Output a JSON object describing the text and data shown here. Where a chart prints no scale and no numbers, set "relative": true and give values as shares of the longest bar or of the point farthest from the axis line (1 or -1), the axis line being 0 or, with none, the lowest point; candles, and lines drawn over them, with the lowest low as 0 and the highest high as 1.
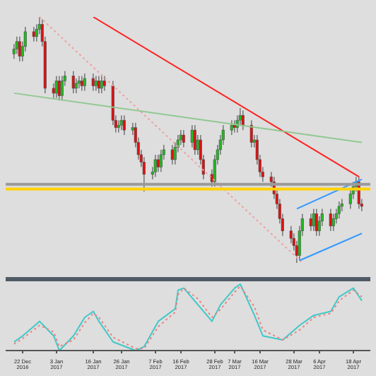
{
  "chart_data": [
    {
      "type": "candlestick",
      "relative": true,
      "tick_labels": false,
      "grid": false,
      "legend": false,
      "xlim": [
        "2016-12-16",
        "2017-04-24"
      ],
      "x": [
        "2016-12-19",
        "2016-12-20",
        "2016-12-21",
        "2016-12-22",
        "2016-12-23",
        "2016-12-26",
        "2016-12-27",
        "2016-12-28",
        "2016-12-29",
        "2016-12-30",
        "2017-01-02",
        "2017-01-03",
        "2017-01-04",
        "2017-01-05",
        "2017-01-06",
        "2017-01-09",
        "2017-01-10",
        "2017-01-11",
        "2017-01-12",
        "2017-01-13",
        "2017-01-16",
        "2017-01-17",
        "2017-01-18",
        "2017-01-19",
        "2017-01-20",
        "2017-01-23",
        "2017-01-24",
        "2017-01-25",
        "2017-01-26",
        "2017-01-27",
        "2017-01-30",
        "2017-01-31",
        "2017-02-01",
        "2017-02-02",
        "2017-02-03",
        "2017-02-06",
        "2017-02-07",
        "2017-02-08",
        "2017-02-09",
        "2017-02-10",
        "2017-02-13",
        "2017-02-14",
        "2017-02-15",
        "2017-02-16",
        "2017-02-17",
        "2017-02-20",
        "2017-02-21",
        "2017-02-22",
        "2017-02-23",
        "2017-02-24",
        "2017-02-27",
        "2017-02-28",
        "2017-03-01",
        "2017-03-02",
        "2017-03-03",
        "2017-03-06",
        "2017-03-07",
        "2017-03-08",
        "2017-03-09",
        "2017-03-10",
        "2017-03-13",
        "2017-03-14",
        "2017-03-15",
        "2017-03-16",
        "2017-03-17",
        "2017-03-20",
        "2017-03-21",
        "2017-03-22",
        "2017-03-23",
        "2017-03-24",
        "2017-03-27",
        "2017-03-28",
        "2017-03-29",
        "2017-03-30",
        "2017-03-31",
        "2017-04-03",
        "2017-04-04",
        "2017-04-05",
        "2017-04-06",
        "2017-04-07",
        "2017-04-10",
        "2017-04-11",
        "2017-04-12",
        "2017-04-13",
        "2017-04-14",
        "2017-04-17",
        "2017-04-18",
        "2017-04-19",
        "2017-04-20",
        "2017-04-21"
      ],
      "ohlc": [
        [
          0.85,
          0.89,
          0.83,
          0.87
        ],
        [
          0.87,
          0.92,
          0.85,
          0.9
        ],
        [
          0.9,
          0.92,
          0.82,
          0.84
        ],
        [
          0.84,
          0.9,
          0.82,
          0.88
        ],
        [
          0.88,
          0.96,
          0.86,
          0.94
        ],
        [
          0.94,
          0.96,
          0.9,
          0.92
        ],
        [
          0.92,
          0.97,
          0.9,
          0.95
        ],
        [
          0.95,
          1.0,
          0.93,
          0.97
        ],
        [
          0.97,
          0.99,
          0.88,
          0.9
        ],
        [
          0.9,
          0.92,
          0.69,
          0.71
        ],
        [
          0.71,
          0.73,
          0.67,
          0.69
        ],
        [
          0.69,
          0.76,
          0.67,
          0.74
        ],
        [
          0.74,
          0.76,
          0.66,
          0.68
        ],
        [
          0.68,
          0.76,
          0.66,
          0.74
        ],
        [
          0.74,
          0.78,
          0.72,
          0.76
        ],
        [
          0.76,
          0.78,
          0.69,
          0.71
        ],
        [
          0.71,
          0.75,
          0.69,
          0.73
        ],
        [
          0.73,
          0.76,
          0.71,
          0.74
        ],
        [
          0.74,
          0.76,
          0.7,
          0.72
        ],
        [
          0.72,
          0.77,
          0.7,
          0.75
        ],
        [
          0.75,
          0.77,
          0.7,
          0.72
        ],
        [
          0.72,
          0.76,
          0.7,
          0.74
        ],
        [
          0.74,
          0.76,
          0.69,
          0.71
        ],
        [
          0.71,
          0.76,
          0.69,
          0.74
        ],
        [
          0.74,
          0.76,
          0.7,
          0.72
        ],
        [
          0.72,
          0.74,
          0.56,
          0.58
        ],
        [
          0.58,
          0.6,
          0.53,
          0.55
        ],
        [
          0.55,
          0.58,
          0.53,
          0.56
        ],
        [
          0.56,
          0.6,
          0.54,
          0.58
        ],
        [
          0.58,
          0.6,
          0.52,
          0.54
        ],
        [
          0.54,
          0.57,
          0.52,
          0.55
        ],
        [
          0.55,
          0.57,
          0.47,
          0.49
        ],
        [
          0.49,
          0.51,
          0.42,
          0.44
        ],
        [
          0.44,
          0.46,
          0.39,
          0.41
        ],
        [
          0.41,
          0.43,
          0.29,
          0.36
        ],
        [
          0.36,
          0.39,
          0.34,
          0.37
        ],
        [
          0.37,
          0.44,
          0.35,
          0.42
        ],
        [
          0.42,
          0.44,
          0.37,
          0.39
        ],
        [
          0.39,
          0.46,
          0.37,
          0.44
        ],
        [
          0.44,
          0.48,
          0.42,
          0.46
        ],
        [
          0.46,
          0.48,
          0.4,
          0.42
        ],
        [
          0.42,
          0.49,
          0.4,
          0.47
        ],
        [
          0.47,
          0.52,
          0.45,
          0.5
        ],
        [
          0.5,
          0.54,
          0.48,
          0.52
        ],
        [
          0.52,
          0.54,
          0.47,
          0.49
        ],
        [
          0.49,
          0.56,
          0.47,
          0.54
        ],
        [
          0.54,
          0.56,
          0.44,
          0.46
        ],
        [
          0.46,
          0.52,
          0.44,
          0.5
        ],
        [
          0.5,
          0.52,
          0.4,
          0.42
        ],
        [
          0.42,
          0.44,
          0.34,
          0.36
        ],
        [
          0.36,
          0.38,
          0.31,
          0.33
        ],
        [
          0.33,
          0.44,
          0.31,
          0.42
        ],
        [
          0.42,
          0.48,
          0.4,
          0.46
        ],
        [
          0.46,
          0.52,
          0.44,
          0.5
        ],
        [
          0.5,
          0.56,
          0.48,
          0.54
        ],
        [
          0.54,
          0.58,
          0.52,
          0.56
        ],
        [
          0.56,
          0.58,
          0.53,
          0.55
        ],
        [
          0.55,
          0.6,
          0.53,
          0.58
        ],
        [
          0.58,
          0.63,
          0.56,
          0.6
        ],
        [
          0.6,
          0.62,
          0.54,
          0.56
        ],
        [
          0.56,
          0.58,
          0.47,
          0.49
        ],
        [
          0.49,
          0.52,
          0.47,
          0.5
        ],
        [
          0.5,
          0.52,
          0.4,
          0.42
        ],
        [
          0.42,
          0.44,
          0.35,
          0.37
        ],
        [
          0.37,
          0.39,
          0.33,
          0.35
        ],
        [
          0.35,
          0.37,
          0.31,
          0.33
        ],
        [
          0.33,
          0.35,
          0.26,
          0.28
        ],
        [
          0.28,
          0.3,
          0.22,
          0.24
        ],
        [
          0.24,
          0.26,
          0.16,
          0.18
        ],
        [
          0.18,
          0.2,
          0.11,
          0.13
        ],
        [
          0.13,
          0.15,
          0.08,
          0.1
        ],
        [
          0.1,
          0.12,
          0.05,
          0.07
        ],
        [
          0.07,
          0.09,
          0.0,
          0.03
        ],
        [
          0.03,
          0.15,
          0.01,
          0.13
        ],
        [
          0.13,
          0.2,
          0.11,
          0.18
        ],
        [
          0.18,
          0.2,
          0.13,
          0.15
        ],
        [
          0.15,
          0.22,
          0.13,
          0.2
        ],
        [
          0.2,
          0.22,
          0.11,
          0.13
        ],
        [
          0.13,
          0.19,
          0.11,
          0.17
        ],
        [
          0.17,
          0.22,
          0.15,
          0.2
        ],
        [
          0.2,
          0.22,
          0.13,
          0.15
        ],
        [
          0.15,
          0.2,
          0.13,
          0.18
        ],
        [
          0.18,
          0.22,
          0.16,
          0.2
        ],
        [
          0.2,
          0.25,
          0.18,
          0.23
        ],
        [
          0.23,
          0.26,
          0.21,
          0.24
        ],
        [
          0.24,
          0.3,
          0.22,
          0.28
        ],
        [
          0.28,
          0.33,
          0.26,
          0.31
        ],
        [
          0.31,
          0.35,
          0.29,
          0.33
        ],
        [
          0.33,
          0.35,
          0.22,
          0.24
        ],
        [
          0.24,
          0.26,
          0.21,
          0.23
        ]
      ],
      "series": [
        {
          "type": "line",
          "color": "#ff2020",
          "line_style": "solid",
          "x": [
            "2017-01-16",
            "2017-04-20"
          ],
          "values": [
            1.0,
            0.35
          ]
        },
        {
          "type": "line",
          "color": "#f0a0a0",
          "line_style": "dotted",
          "x": [
            "2016-12-28",
            "2017-03-31"
          ],
          "values": [
            1.0,
            0.0
          ]
        },
        {
          "type": "line",
          "color": "#90c890",
          "line_style": "solid",
          "x": [
            "2016-12-19",
            "2017-04-21"
          ],
          "values": [
            0.69,
            0.49
          ]
        },
        {
          "type": "line",
          "color": "#3399ff",
          "line_style": "solid",
          "x": [
            "2017-03-29",
            "2017-04-21"
          ],
          "values": [
            0.22,
            0.34
          ]
        },
        {
          "type": "line",
          "color": "#3399ff",
          "line_style": "solid",
          "x": [
            "2017-03-30",
            "2017-04-21"
          ],
          "values": [
            0.01,
            0.12
          ]
        }
      ],
      "ref_lines": [
        {
          "axis": "y",
          "value": 0.32,
          "color": "#9a9a9a"
        },
        {
          "axis": "y",
          "value": 0.3,
          "color": "#ffd200"
        }
      ]
    },
    {
      "type": "line",
      "relative": true,
      "tick_labels": "x",
      "grid": false,
      "legend": false,
      "marker": "none",
      "xlim": [
        "2016-12-16",
        "2017-04-24"
      ],
      "xticks": [
        {
          "value": "2016-12-22",
          "label": "22 Dec 2016"
        },
        {
          "value": "2017-01-03",
          "label": "3 Jan 2017"
        },
        {
          "value": "2017-01-16",
          "label": "16 Jan 2017"
        },
        {
          "value": "2017-01-26",
          "label": "26 Jan 2017"
        },
        {
          "value": "2017-02-07",
          "label": "7 Feb 2017"
        },
        {
          "value": "2017-02-16",
          "label": "16 Feb 2017"
        },
        {
          "value": "2017-02-28",
          "label": "28 Feb 2017"
        },
        {
          "value": "2017-03-07",
          "label": "7 Mar 2017"
        },
        {
          "value": "2017-03-16",
          "label": "16 Mar 2017"
        },
        {
          "value": "2017-03-28",
          "label": "28 Mar 2017"
        },
        {
          "value": "2017-04-06",
          "label": "6 Apr 2017"
        },
        {
          "value": "2017-04-18",
          "label": "18 Apr 2017"
        }
      ],
      "x": [
        "2016-12-19",
        "2016-12-22",
        "2016-12-28",
        "2017-01-02",
        "2017-01-04",
        "2017-01-09",
        "2017-01-13",
        "2017-01-16",
        "2017-01-18",
        "2017-01-23",
        "2017-01-31",
        "2017-02-03",
        "2017-02-08",
        "2017-02-14",
        "2017-02-15",
        "2017-02-17",
        "2017-02-22",
        "2017-02-27",
        "2017-03-02",
        "2017-03-07",
        "2017-03-09",
        "2017-03-14",
        "2017-03-17",
        "2017-03-24",
        "2017-03-30",
        "2017-04-04",
        "2017-04-10",
        "2017-04-13",
        "2017-04-18",
        "2017-04-21"
      ],
      "series": [
        {
          "color": "#40c8c8",
          "line_style": "solid",
          "values": [
            0.13,
            0.22,
            0.44,
            0.22,
            0,
            0.22,
            0.5,
            0.59,
            0.44,
            0.13,
            0,
            0.06,
            0.44,
            0.63,
            0.91,
            0.94,
            0.69,
            0.44,
            0.69,
            0.94,
            1,
            0.53,
            0.22,
            0.16,
            0.38,
            0.53,
            0.59,
            0.81,
            0.94,
            0.75
          ]
        },
        {
          "color": "#f08080",
          "line_style": "dotted",
          "values": [
            0.1,
            0.18,
            0.38,
            0.28,
            0.06,
            0.16,
            0.42,
            0.56,
            0.5,
            0.2,
            0.03,
            0.03,
            0.36,
            0.58,
            0.84,
            0.94,
            0.78,
            0.5,
            0.62,
            0.88,
            0.97,
            0.66,
            0.31,
            0.16,
            0.31,
            0.5,
            0.56,
            0.75,
            0.91,
            0.81
          ]
        }
      ]
    }
  ]
}
